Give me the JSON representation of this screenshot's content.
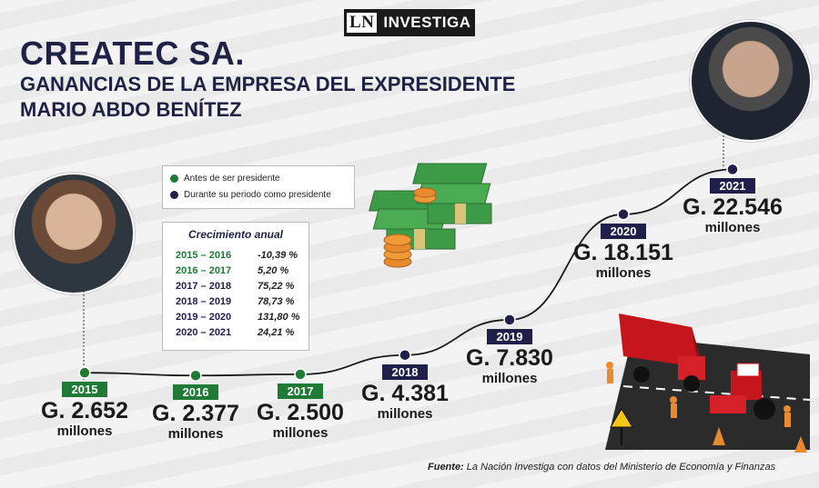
{
  "logo": {
    "ln": "LN",
    "text": "INVESTIGA"
  },
  "title": "CREATEC SA.",
  "subtitle_line1": "GANANCIAS DE LA EMPRESA DEL EXPRESIDENTE",
  "subtitle_line2": "MARIO ABDO BENÍTEZ",
  "legend": [
    {
      "label": "Antes de ser presidente",
      "color": "#1e7a34"
    },
    {
      "label": "Durante su periodo como presidente",
      "color": "#1f1f4a"
    }
  ],
  "growth": {
    "title": "Crecimiento anual",
    "rows": [
      {
        "period": "2015 – 2016",
        "value": "-10,39 %",
        "color": "#1e7a34"
      },
      {
        "period": "2016 – 2017",
        "value": "5,20 %",
        "color": "#1e7a34"
      },
      {
        "period": "2017 – 2018",
        "value": "75,22 %",
        "color": "#1f1f4a"
      },
      {
        "period": "2018 – 2019",
        "value": "78,73 %",
        "color": "#1f1f4a"
      },
      {
        "period": "2019 – 2020",
        "value": "131,80 %",
        "color": "#1f1f4a"
      },
      {
        "period": "2020 – 2021",
        "value": "24,21 %",
        "color": "#1f1f4a"
      }
    ]
  },
  "chart_data": {
    "type": "line",
    "title": "GANANCIAS DE LA EMPRESA DEL EXPRESIDENTE",
    "x": [
      "2015",
      "2016",
      "2017",
      "2018",
      "2019",
      "2020",
      "2021"
    ],
    "values": [
      2652,
      2377,
      2500,
      4381,
      7830,
      18151,
      22546
    ],
    "labels": [
      "G. 2.652",
      "G. 2.377",
      "G. 2.500",
      "G. 4.381",
      "G. 7.830",
      "G. 18.151",
      "G. 22.546"
    ],
    "unit": "millones",
    "colors": [
      "#1e7a34",
      "#1e7a34",
      "#1e7a34",
      "#1f1f4a",
      "#1f1f4a",
      "#1f1f4a",
      "#1f1f4a"
    ],
    "legend_position": "top-left"
  },
  "source_label": "Fuente:",
  "source_text": "La Nación Investiga con datos del Ministerio de Economía y Finanzas"
}
